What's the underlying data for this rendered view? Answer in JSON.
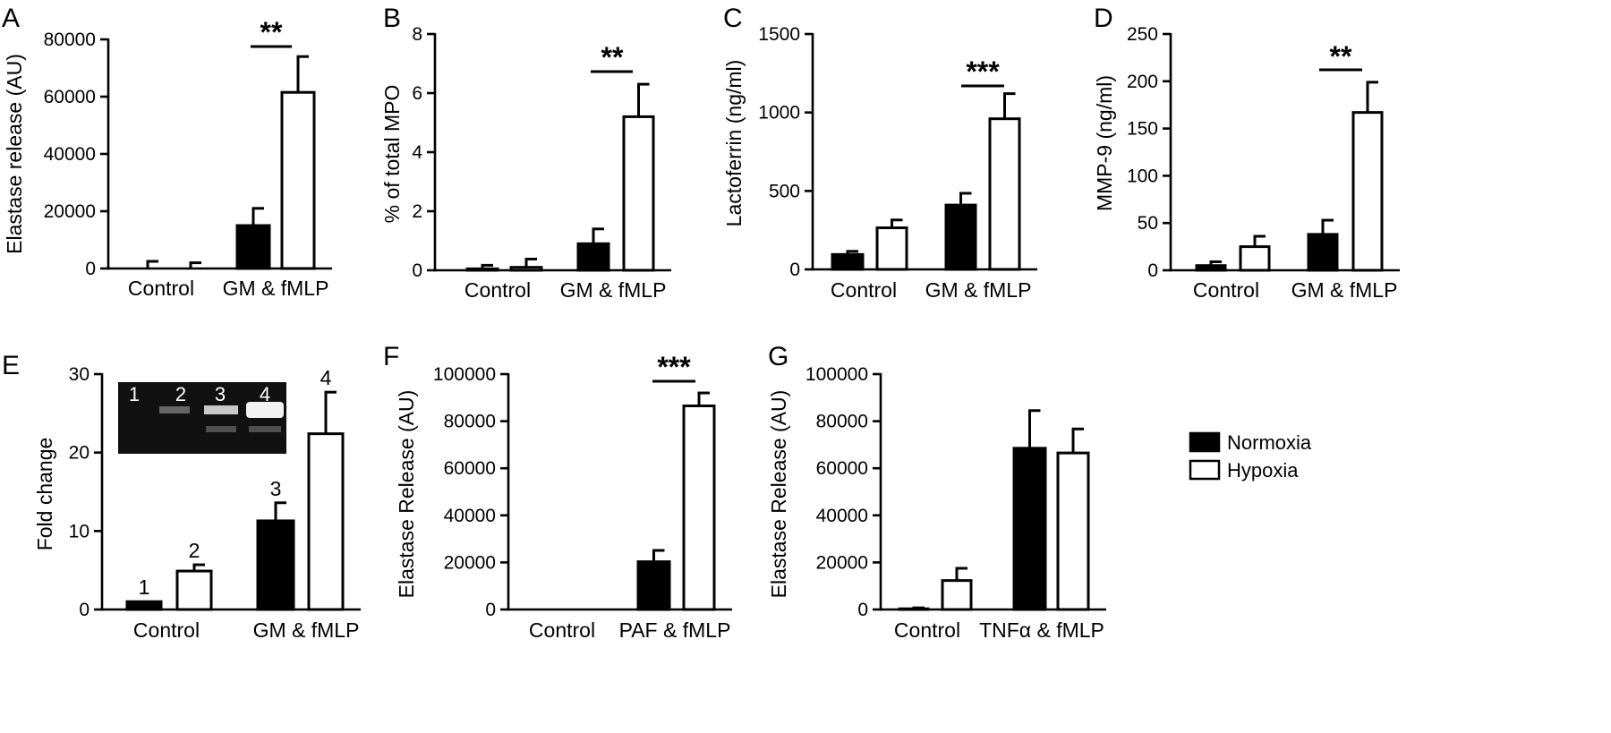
{
  "legend": [
    {
      "name": "Normoxia",
      "color": "#000000"
    },
    {
      "name": "Hypoxia",
      "color": "#ffffff"
    }
  ],
  "chart_data": [
    {
      "panel": "A",
      "type": "bar",
      "ylabel": "Elastase release (AU)",
      "ylim": [
        0,
        80000
      ],
      "yticks": [
        "0",
        "20000",
        "40000",
        "60000",
        "80000"
      ],
      "categories": [
        "Control",
        "GM & fMLP"
      ],
      "series": [
        {
          "name": "Normoxia",
          "values": [
            0,
            15000
          ],
          "errors": [
            2500,
            6000
          ]
        },
        {
          "name": "Hypoxia",
          "values": [
            0,
            61500
          ],
          "errors": [
            2000,
            12500
          ]
        }
      ],
      "annotations": [
        {
          "text": "**",
          "category": 1
        }
      ]
    },
    {
      "panel": "B",
      "type": "bar",
      "ylabel": "% of total MPO",
      "ylim": [
        0,
        8
      ],
      "yticks": [
        "0",
        "2",
        "4",
        "6",
        "8"
      ],
      "categories": [
        "Control",
        "GM & fMLP"
      ],
      "series": [
        {
          "name": "Normoxia",
          "values": [
            0.05,
            0.9
          ],
          "errors": [
            0.12,
            0.5
          ]
        },
        {
          "name": "Hypoxia",
          "values": [
            0.1,
            5.2
          ],
          "errors": [
            0.28,
            1.1
          ]
        }
      ],
      "annotations": [
        {
          "text": "**",
          "category": 1
        }
      ]
    },
    {
      "panel": "C",
      "type": "bar",
      "ylabel": "Lactoferrin (ng/ml)",
      "ylim": [
        0,
        1500
      ],
      "yticks": [
        "0",
        "500",
        "1000",
        "1500"
      ],
      "categories": [
        "Control",
        "GM & fMLP"
      ],
      "series": [
        {
          "name": "Normoxia",
          "values": [
            95,
            410
          ],
          "errors": [
            20,
            75
          ]
        },
        {
          "name": "Hypoxia",
          "values": [
            265,
            960
          ],
          "errors": [
            50,
            160
          ]
        }
      ],
      "annotations": [
        {
          "text": "***",
          "category": 1
        }
      ]
    },
    {
      "panel": "D",
      "type": "bar",
      "ylabel": "MMP-9 (ng/ml)",
      "ylim": [
        0,
        250
      ],
      "yticks": [
        "0",
        "50",
        "100",
        "150",
        "200",
        "250"
      ],
      "categories": [
        "Control",
        "GM & fMLP"
      ],
      "series": [
        {
          "name": "Normoxia",
          "values": [
            5,
            38
          ],
          "errors": [
            4,
            15
          ]
        },
        {
          "name": "Hypoxia",
          "values": [
            25,
            167
          ],
          "errors": [
            11,
            32
          ]
        }
      ],
      "annotations": [
        {
          "text": "**",
          "category": 1
        }
      ]
    },
    {
      "panel": "E",
      "type": "bar",
      "ylabel": "Fold change",
      "ylim": [
        0,
        30
      ],
      "yticks": [
        "0",
        "10",
        "20",
        "30"
      ],
      "categories": [
        "Control",
        "GM & fMLP"
      ],
      "series": [
        {
          "name": "Normoxia",
          "values": [
            1,
            11.3
          ],
          "errors": [
            0,
            2.3
          ],
          "labels": [
            "1",
            "3"
          ]
        },
        {
          "name": "Hypoxia",
          "values": [
            4.9,
            22.4
          ],
          "errors": [
            0.8,
            5.3
          ],
          "labels": [
            "2",
            "4"
          ]
        }
      ],
      "gel_lanes": [
        "1",
        "2",
        "3",
        "4"
      ]
    },
    {
      "panel": "F",
      "type": "bar",
      "ylabel": "Elastase Release (AU)",
      "ylim": [
        0,
        100000
      ],
      "yticks": [
        "0",
        "20000",
        "40000",
        "60000",
        "80000",
        "100000"
      ],
      "categories": [
        "Control",
        "PAF & fMLP"
      ],
      "series": [
        {
          "name": "Normoxia",
          "values": [
            0,
            20300
          ],
          "errors": [
            0,
            4800
          ]
        },
        {
          "name": "Hypoxia",
          "values": [
            0,
            86500
          ],
          "errors": [
            0,
            5500
          ]
        }
      ],
      "annotations": [
        {
          "text": "***",
          "category": 1
        }
      ]
    },
    {
      "panel": "G",
      "type": "bar",
      "ylabel": "Elastase Release (AU)",
      "ylim": [
        0,
        100000
      ],
      "yticks": [
        "0",
        "20000",
        "40000",
        "60000",
        "80000",
        "100000"
      ],
      "categories": [
        "Control",
        "TNFα & fMLP"
      ],
      "series": [
        {
          "name": "Normoxia",
          "values": [
            300,
            68500
          ],
          "errors": [
            400,
            16000
          ]
        },
        {
          "name": "Hypoxia",
          "values": [
            12300,
            66500
          ],
          "errors": [
            5200,
            10200
          ]
        }
      ]
    }
  ]
}
